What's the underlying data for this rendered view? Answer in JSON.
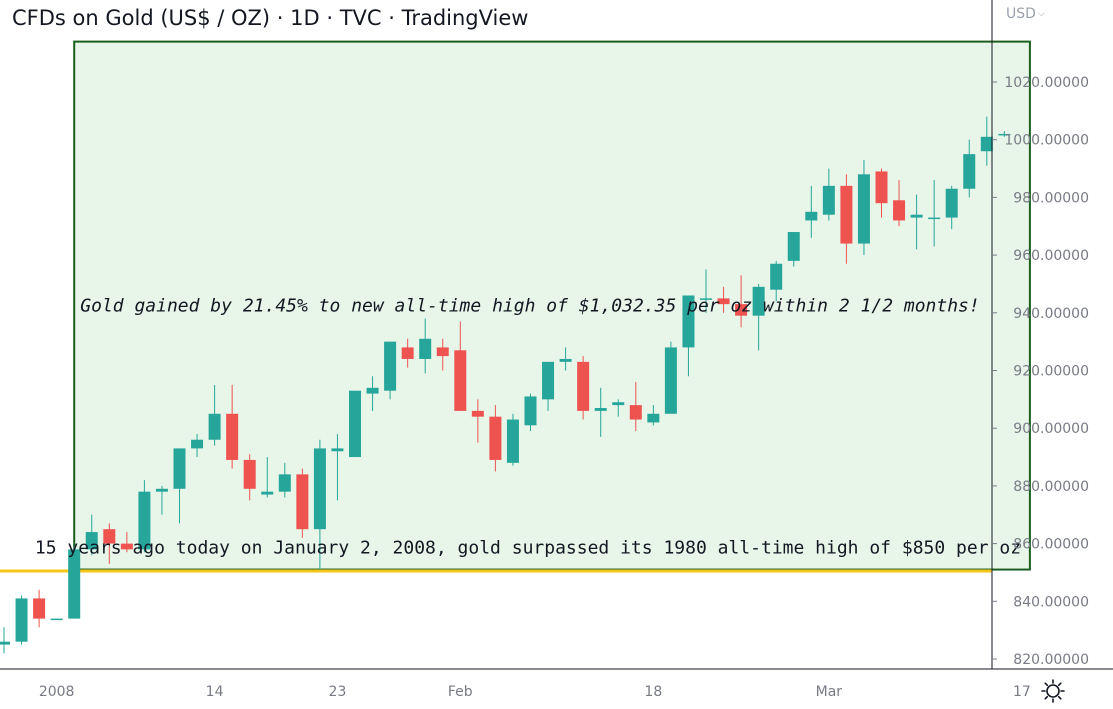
{
  "header": {
    "title": "CFDs on Gold (US$ / OZ) · 1D · TVC · TradingView",
    "currency": "USD"
  },
  "chart_data": {
    "type": "candlestick",
    "y_axis": {
      "ticks": [
        "820.00000",
        "840.00000",
        "860.00000",
        "880.00000",
        "900.00000",
        "920.00000",
        "940.00000",
        "960.00000",
        "980.00000",
        "1000.00000",
        "1020.00000"
      ],
      "ylim": [
        815,
        1040
      ]
    },
    "x_axis": {
      "tick_labels": [
        {
          "label": "2008",
          "index": 3
        },
        {
          "label": "14",
          "index": 12
        },
        {
          "label": "23",
          "index": 19
        },
        {
          "label": "Feb",
          "index": 26
        },
        {
          "label": "18",
          "index": 37
        },
        {
          "label": "Mar",
          "index": 47
        },
        {
          "label": "17",
          "index": 58
        }
      ]
    },
    "candles": [
      {
        "o": 825,
        "h": 831,
        "l": 822,
        "c": 826
      },
      {
        "o": 826,
        "h": 842,
        "l": 825,
        "c": 841
      },
      {
        "o": 841,
        "h": 844,
        "l": 831,
        "c": 834
      },
      {
        "o": 834,
        "h": 834,
        "l": 834,
        "c": 834
      },
      {
        "o": 834,
        "h": 859,
        "l": 834,
        "c": 858
      },
      {
        "o": 858,
        "h": 870,
        "l": 856,
        "c": 864
      },
      {
        "o": 865,
        "h": 867,
        "l": 853,
        "c": 860
      },
      {
        "o": 860,
        "h": 864,
        "l": 857,
        "c": 858
      },
      {
        "o": 858,
        "h": 882,
        "l": 857,
        "c": 878
      },
      {
        "o": 878,
        "h": 880,
        "l": 870,
        "c": 879
      },
      {
        "o": 879,
        "h": 892,
        "l": 867,
        "c": 893
      },
      {
        "o": 893,
        "h": 898,
        "l": 890,
        "c": 896
      },
      {
        "o": 896,
        "h": 915,
        "l": 894,
        "c": 905
      },
      {
        "o": 905,
        "h": 915,
        "l": 886,
        "c": 889
      },
      {
        "o": 889,
        "h": 891,
        "l": 875,
        "c": 879
      },
      {
        "o": 877,
        "h": 890,
        "l": 876,
        "c": 878
      },
      {
        "o": 878,
        "h": 888,
        "l": 876,
        "c": 884
      },
      {
        "o": 884,
        "h": 886,
        "l": 862,
        "c": 865
      },
      {
        "o": 865,
        "h": 896,
        "l": 851,
        "c": 893
      },
      {
        "o": 892,
        "h": 898,
        "l": 875,
        "c": 893
      },
      {
        "o": 890,
        "h": 912,
        "l": 890,
        "c": 913
      },
      {
        "o": 912,
        "h": 918,
        "l": 906,
        "c": 914
      },
      {
        "o": 913,
        "h": 930,
        "l": 910,
        "c": 930
      },
      {
        "o": 928,
        "h": 931,
        "l": 921,
        "c": 924
      },
      {
        "o": 924,
        "h": 938,
        "l": 919,
        "c": 931
      },
      {
        "o": 928,
        "h": 931,
        "l": 920,
        "c": 925
      },
      {
        "o": 927,
        "h": 937,
        "l": 906,
        "c": 906
      },
      {
        "o": 906,
        "h": 910,
        "l": 895,
        "c": 904
      },
      {
        "o": 904,
        "h": 908,
        "l": 885,
        "c": 889
      },
      {
        "o": 888,
        "h": 905,
        "l": 887,
        "c": 903
      },
      {
        "o": 901,
        "h": 912,
        "l": 899,
        "c": 911
      },
      {
        "o": 910,
        "h": 922,
        "l": 906,
        "c": 923
      },
      {
        "o": 923,
        "h": 928,
        "l": 920,
        "c": 924
      },
      {
        "o": 923,
        "h": 925,
        "l": 903,
        "c": 906
      },
      {
        "o": 906,
        "h": 914,
        "l": 897,
        "c": 907
      },
      {
        "o": 908,
        "h": 910,
        "l": 904,
        "c": 909
      },
      {
        "o": 908,
        "h": 916,
        "l": 899,
        "c": 903
      },
      {
        "o": 902,
        "h": 908,
        "l": 901,
        "c": 905
      },
      {
        "o": 905,
        "h": 930,
        "l": 905,
        "c": 928
      },
      {
        "o": 928,
        "h": 946,
        "l": 918,
        "c": 946
      },
      {
        "o": 945,
        "h": 955,
        "l": 940,
        "c": 945
      },
      {
        "o": 945,
        "h": 949,
        "l": 940,
        "c": 943
      },
      {
        "o": 943,
        "h": 953,
        "l": 935,
        "c": 939
      },
      {
        "o": 939,
        "h": 950,
        "l": 927,
        "c": 949
      },
      {
        "o": 948,
        "h": 958,
        "l": 944,
        "c": 957
      },
      {
        "o": 958,
        "h": 967,
        "l": 956,
        "c": 968
      },
      {
        "o": 972,
        "h": 984,
        "l": 966,
        "c": 975
      },
      {
        "o": 974,
        "h": 990,
        "l": 972,
        "c": 984
      },
      {
        "o": 984,
        "h": 988,
        "l": 957,
        "c": 964
      },
      {
        "o": 964,
        "h": 993,
        "l": 960,
        "c": 988
      },
      {
        "o": 989,
        "h": 990,
        "l": 973,
        "c": 978
      },
      {
        "o": 979,
        "h": 986,
        "l": 970,
        "c": 972
      },
      {
        "o": 973,
        "h": 981,
        "l": 962,
        "c": 974
      },
      {
        "o": 973,
        "h": 986,
        "l": 963,
        "c": 973
      },
      {
        "o": 973,
        "h": 984,
        "l": 969,
        "c": 983
      },
      {
        "o": 983,
        "h": 1000,
        "l": 980,
        "c": 995
      },
      {
        "o": 996,
        "h": 1008,
        "l": 991,
        "c": 1001
      },
      {
        "o": 1002,
        "h": 1003,
        "l": 1001,
        "c": 1002
      }
    ],
    "colors": {
      "up": "#26a69a",
      "down": "#ef5350",
      "box_fill": "#e8f5e9",
      "box_border": "#1b5e20",
      "hline": "#f5c518",
      "grid": "#787b86"
    },
    "annotation_box": {
      "start_index": 4,
      "end_index": 58,
      "top": 1034,
      "bottom": 851
    },
    "horizontal_line": {
      "value": 850.5
    },
    "annotations": [
      {
        "text": "Gold gained by 21.45% to new all-time high of $1,032.35 per oz within 2 1/2 months!",
        "value": 940.5,
        "style": "italic"
      },
      {
        "text": "15 years ago today on January 2, 2008, gold surpassed its 1980 all-time high of $850 per oz",
        "value": 856.5,
        "style": "normal"
      }
    ]
  }
}
